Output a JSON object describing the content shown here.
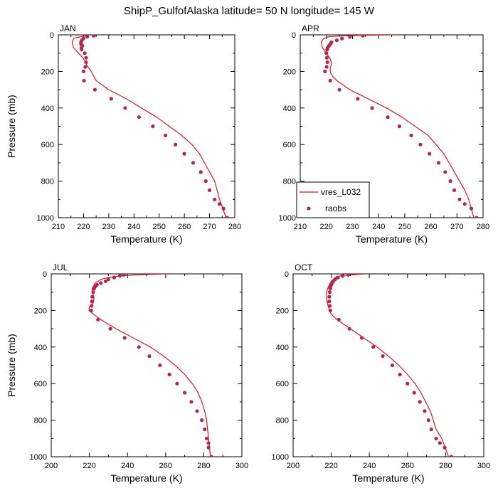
{
  "title": "ShipP_GulfofAlaska  latitude= 50 N longitude= 145 W",
  "colors": {
    "model": "#e0141e",
    "obs": "#b5264f",
    "axis": "#000000"
  },
  "legend": {
    "model_label": "vres_L032",
    "obs_label": "raobs"
  },
  "chart_data": [
    {
      "type": "line",
      "panel": "JAN",
      "xlabel": "Temperature (K)",
      "ylabel": "Pressure (mb)",
      "xlim": [
        210,
        280
      ],
      "ylim": [
        1000,
        0
      ],
      "xticks": [
        210,
        220,
        230,
        240,
        250,
        260,
        270,
        280
      ],
      "yticks": [
        0,
        200,
        400,
        600,
        800,
        1000
      ],
      "series": [
        {
          "name": "vres_L032",
          "kind": "line",
          "x": [
            221,
            219,
            217,
            216,
            215.5,
            216,
            218,
            220,
            221,
            222,
            223,
            225,
            230,
            237,
            243,
            249,
            254,
            259,
            263,
            266,
            268,
            270,
            272,
            274,
            276.5
          ],
          "y": [
            5,
            10,
            15,
            20,
            40,
            70,
            100,
            130,
            160,
            180,
            200,
            250,
            300,
            350,
            400,
            450,
            500,
            550,
            600,
            650,
            700,
            750,
            800,
            900,
            1000
          ]
        },
        {
          "name": "raobs",
          "kind": "points",
          "x": [
            224,
            221.5,
            220,
            219.3,
            219,
            219,
            219.5,
            219.2,
            219.2,
            220.5,
            221,
            221,
            220.7,
            220,
            220.2,
            224.5,
            231,
            236.5,
            242,
            247.5,
            252.5,
            256.5,
            260,
            263.5,
            266.5,
            268.5,
            270,
            272,
            274,
            275.5,
            277
          ],
          "y": [
            5,
            10,
            20,
            30,
            40,
            50,
            60,
            70,
            80,
            100,
            125,
            150,
            175,
            200,
            250,
            300,
            350,
            400,
            450,
            500,
            550,
            600,
            650,
            700,
            750,
            800,
            850,
            900,
            925,
            950,
            1000
          ]
        }
      ]
    },
    {
      "type": "line",
      "panel": "APR",
      "xlabel": "Temperature (K)",
      "ylabel": "",
      "xlim": [
        210,
        280
      ],
      "ylim": [
        1000,
        0
      ],
      "xticks": [
        210,
        220,
        230,
        240,
        250,
        260,
        270,
        280
      ],
      "yticks": [
        0,
        200,
        400,
        600,
        800,
        1000
      ],
      "series": [
        {
          "name": "vres_L032",
          "kind": "line",
          "x": [
            247,
            235,
            226,
            221,
            219,
            218,
            218.5,
            220,
            221.5,
            222,
            221.5,
            221.5,
            222,
            224,
            229,
            236,
            243,
            249,
            254,
            259,
            262,
            265,
            267,
            269,
            271,
            273,
            274.5,
            276.5
          ],
          "y": [
            0,
            2,
            5,
            10,
            20,
            40,
            70,
            100,
            130,
            160,
            180,
            200,
            220,
            250,
            300,
            350,
            400,
            450,
            500,
            550,
            600,
            650,
            700,
            750,
            800,
            850,
            900,
            1000
          ]
        },
        {
          "name": "raobs",
          "kind": "points",
          "x": [
            234,
            229,
            226,
            224,
            222,
            221.5,
            221,
            220.5,
            220.3,
            220,
            220.2,
            220.4,
            220.1,
            219.5,
            221.5,
            225,
            232,
            237.5,
            243.5,
            248,
            252.5,
            256,
            259.5,
            263,
            265.5,
            267.5,
            269,
            271,
            273,
            275.5,
            277.5
          ],
          "y": [
            5,
            10,
            20,
            30,
            40,
            50,
            60,
            70,
            80,
            100,
            125,
            150,
            175,
            200,
            250,
            300,
            350,
            400,
            450,
            500,
            550,
            600,
            650,
            700,
            750,
            800,
            850,
            900,
            925,
            950,
            1000
          ]
        }
      ]
    },
    {
      "type": "line",
      "panel": "JUL",
      "xlabel": "Temperature (K)",
      "ylabel": "Pressure (mb)",
      "xlim": [
        200,
        300
      ],
      "ylim": [
        1000,
        0
      ],
      "xticks": [
        200,
        220,
        240,
        260,
        280,
        300
      ],
      "yticks": [
        0,
        200,
        400,
        600,
        800,
        1000
      ],
      "series": [
        {
          "name": "vres_L032",
          "kind": "line",
          "x": [
            260,
            245,
            237,
            230,
            226,
            223,
            221.5,
            221.5,
            222.5,
            222,
            220,
            219.8,
            222,
            226,
            234,
            243,
            252,
            259,
            265,
            270,
            274,
            277,
            279,
            280.5,
            281.5,
            282.5,
            283.5
          ],
          "y": [
            0,
            5,
            10,
            20,
            30,
            50,
            80,
            100,
            130,
            160,
            180,
            200,
            220,
            250,
            300,
            350,
            400,
            450,
            500,
            550,
            600,
            650,
            700,
            750,
            800,
            900,
            1000
          ]
        },
        {
          "name": "raobs",
          "kind": "points",
          "x": [
            238,
            236,
            233,
            230,
            228.5,
            226,
            224,
            223,
            222.5,
            222,
            221.5,
            221.3,
            221.2,
            221,
            224.5,
            231,
            238.5,
            246,
            251.5,
            257,
            262,
            266,
            270,
            273.5,
            276.5,
            279,
            280.5,
            281.5,
            282.5,
            282.5,
            284
          ],
          "y": [
            5,
            10,
            20,
            30,
            40,
            50,
            60,
            70,
            80,
            100,
            125,
            150,
            175,
            200,
            250,
            300,
            350,
            400,
            450,
            500,
            550,
            600,
            650,
            700,
            750,
            800,
            850,
            900,
            925,
            950,
            1000
          ]
        }
      ]
    },
    {
      "type": "line",
      "panel": "OCT",
      "xlabel": "Temperature (K)",
      "ylabel": "",
      "xlim": [
        200,
        300
      ],
      "ylim": [
        1000,
        0
      ],
      "xticks": [
        200,
        220,
        240,
        260,
        280,
        300
      ],
      "yticks": [
        0,
        200,
        400,
        600,
        800,
        1000
      ],
      "series": [
        {
          "name": "vres_L032",
          "kind": "line",
          "x": [
            238,
            230,
            225,
            222,
            220,
            218.5,
            217.5,
            217.5,
            218,
            218.5,
            219,
            220,
            223,
            230,
            237,
            244,
            250,
            255.5,
            260,
            264,
            267,
            269.5,
            272,
            275,
            278,
            281.5
          ],
          "y": [
            0,
            5,
            10,
            20,
            40,
            70,
            100,
            130,
            160,
            180,
            200,
            220,
            250,
            300,
            350,
            400,
            450,
            500,
            550,
            600,
            650,
            700,
            750,
            850,
            900,
            1000
          ]
        },
        {
          "name": "raobs",
          "kind": "points",
          "x": [
            229,
            226,
            223.5,
            222,
            221,
            220.5,
            220,
            219.5,
            219.5,
            219.2,
            219,
            219,
            219.2,
            219.5,
            224,
            229.5,
            236,
            242,
            247,
            252,
            256,
            260,
            263.5,
            266.5,
            269,
            271,
            272.5,
            275,
            277,
            279.5,
            283
          ],
          "y": [
            5,
            10,
            20,
            30,
            40,
            50,
            60,
            70,
            80,
            100,
            125,
            150,
            175,
            200,
            250,
            300,
            350,
            400,
            450,
            500,
            550,
            600,
            650,
            700,
            750,
            800,
            850,
            900,
            925,
            950,
            1000
          ]
        }
      ]
    }
  ]
}
